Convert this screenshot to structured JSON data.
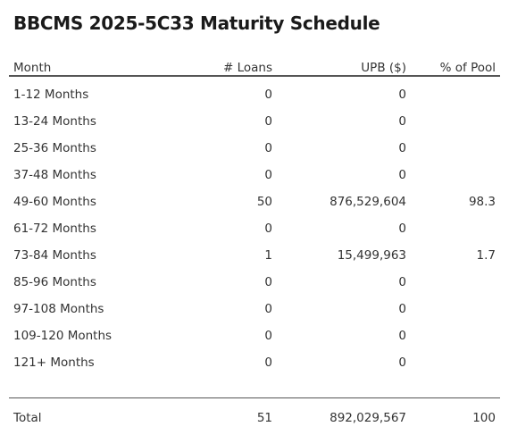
{
  "title": "BBCMS 2025-5C33 Maturity Schedule",
  "columns": {
    "month": "Month",
    "loans": "# Loans",
    "upb": "UPB ($)",
    "pct": "% of Pool"
  },
  "rows": [
    {
      "month": "1-12 Months",
      "loans": "0",
      "upb": "0",
      "pct": ""
    },
    {
      "month": "13-24 Months",
      "loans": "0",
      "upb": "0",
      "pct": ""
    },
    {
      "month": "25-36 Months",
      "loans": "0",
      "upb": "0",
      "pct": ""
    },
    {
      "month": "37-48 Months",
      "loans": "0",
      "upb": "0",
      "pct": ""
    },
    {
      "month": "49-60 Months",
      "loans": "50",
      "upb": "876,529,604",
      "pct": "98.3"
    },
    {
      "month": "61-72 Months",
      "loans": "0",
      "upb": "0",
      "pct": ""
    },
    {
      "month": "73-84 Months",
      "loans": "1",
      "upb": "15,499,963",
      "pct": "1.7"
    },
    {
      "month": "85-96 Months",
      "loans": "0",
      "upb": "0",
      "pct": ""
    },
    {
      "month": "97-108 Months",
      "loans": "0",
      "upb": "0",
      "pct": ""
    },
    {
      "month": "109-120 Months",
      "loans": "0",
      "upb": "0",
      "pct": ""
    },
    {
      "month": "121+ Months",
      "loans": "0",
      "upb": "0",
      "pct": ""
    }
  ],
  "total": {
    "month": "Total",
    "loans": "51",
    "upb": "892,029,567",
    "pct": "100"
  }
}
